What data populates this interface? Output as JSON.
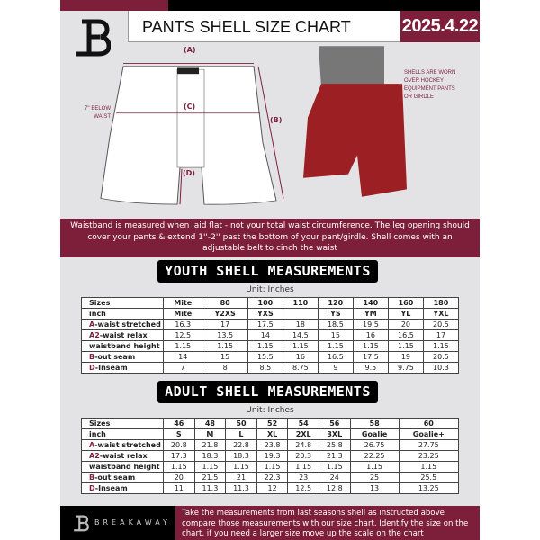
{
  "header": {
    "title": "PANTS SHELL SIZE CHART",
    "date": "2025.4.22"
  },
  "diagram": {
    "label_a": "(A)",
    "label_b": "(B)",
    "label_c": "(C)",
    "label_d": "(D)",
    "below_waist": "7'' BELOW WAIST",
    "worn_note": "SHELLS ARE WORN OVER HOCKEY EQUIPMENT PANTS OR GIRDLE"
  },
  "banner": {
    "text": "Waistband is measured when laid flat - not your total waist circumference. The leg opening should cover your pants & extend 1''-2'' past the bottom of your pant/girdle. Shell comes with an adjustable belt to cinch the waist"
  },
  "youth": {
    "title": "YOUTH SHELL MEASUREMENTS",
    "unit": "Unit: Inches",
    "rows": [
      {
        "prefix": "",
        "label": "Sizes",
        "values": [
          "Mite",
          "80",
          "100",
          "110",
          "120",
          "140",
          "160",
          "180"
        ]
      },
      {
        "prefix": "",
        "label": "inch",
        "values": [
          "Mite",
          "Y2XS",
          "YXS",
          "",
          "YS",
          "YM",
          "YL",
          "YXL"
        ]
      },
      {
        "prefix": "A",
        "label": "-waist stretched",
        "values": [
          "16.3",
          "17",
          "17.5",
          "18",
          "18.5",
          "19.5",
          "20",
          "20.5"
        ]
      },
      {
        "prefix": "A2",
        "label": "-waist relax",
        "values": [
          "12.5",
          "13.5",
          "14",
          "14.5",
          "15",
          "16",
          "16.5",
          "17"
        ]
      },
      {
        "prefix": "",
        "label": "waistband height",
        "values": [
          "1.15",
          "1.15",
          "1.15",
          "1.15",
          "1.15",
          "1.15",
          "1.15",
          "1.15"
        ]
      },
      {
        "prefix": "B",
        "label": "-out seam",
        "values": [
          "14",
          "15",
          "15.5",
          "16",
          "16.5",
          "17.5",
          "19",
          "20.5"
        ]
      },
      {
        "prefix": "D",
        "label": "-Inseam",
        "values": [
          "7",
          "8",
          "8.5",
          "8.75",
          "9",
          "9.5",
          "9.75",
          "10.3"
        ]
      }
    ]
  },
  "adult": {
    "title": "ADULT SHELL MEASUREMENTS",
    "unit": "Unit: Inches",
    "rows": [
      {
        "prefix": "",
        "label": "Sizes",
        "values": [
          "46",
          "48",
          "50",
          "52",
          "54",
          "56",
          "58",
          "60"
        ]
      },
      {
        "prefix": "",
        "label": "inch",
        "values": [
          "S",
          "M",
          "L",
          "XL",
          "2XL",
          "3XL",
          "Goalie",
          "Goalie+"
        ]
      },
      {
        "prefix": "A",
        "label": "-waist stretched",
        "values": [
          "20.8",
          "21.8",
          "22.8",
          "23.8",
          "24.8",
          "25.8",
          "26.75",
          "27.75"
        ]
      },
      {
        "prefix": "A2",
        "label": "-waist relax",
        "values": [
          "17.3",
          "18.3",
          "18.3",
          "19.3",
          "20.3",
          "21.3",
          "22.25",
          "23.25"
        ]
      },
      {
        "prefix": "",
        "label": "waistband height",
        "values": [
          "1.15",
          "1.15",
          "1.15",
          "1.15",
          "1.15",
          "1.15",
          "1.15",
          "1.15"
        ]
      },
      {
        "prefix": "B",
        "label": "-out seam",
        "values": [
          "20",
          "21.5",
          "21",
          "22.3",
          "23",
          "24",
          "25",
          "25.5"
        ]
      },
      {
        "prefix": "D",
        "label": "-Inseam",
        "values": [
          "11",
          "11.3",
          "11.3",
          "12",
          "12.5",
          "12.8",
          "13",
          "13.25"
        ]
      }
    ]
  },
  "footer": {
    "brand": "BREAKAWAY",
    "text": "Take the measurements from last seasons shell as instructed above compare those measurements with our size chart. Identify the size on the chart, if you need a larger size move up the scale on the chart"
  },
  "colors": {
    "accent": "#7d1f3a",
    "background": "#e3e3e6"
  }
}
